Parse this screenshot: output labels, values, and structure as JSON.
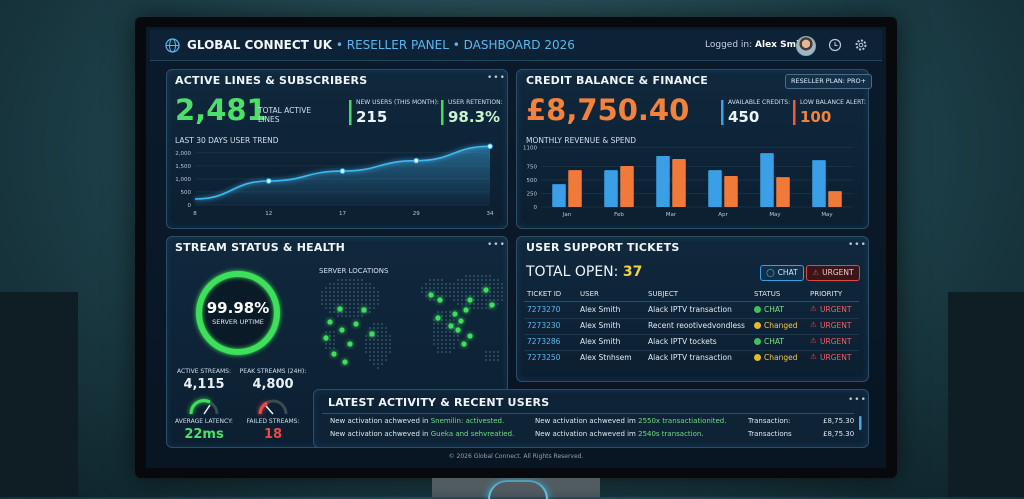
{
  "header": {
    "brand": "GLOBAL CONNECT UK",
    "section": "• RESELLER PANEL",
    "page": "• DASHBOARD 2026",
    "login_label": "Logged in:",
    "user": "Alex Smith"
  },
  "active_lines": {
    "title": "ACTIVE LINES & SUBSCRIBERS",
    "total": "2,481",
    "total_label": "TOTAL ACTIVE LINES",
    "new_users_label": "NEW USERS (THIS MONTH):",
    "new_users": "215",
    "retention_label": "USER RETENTION:",
    "retention": "98.3%",
    "chart_data": {
      "type": "line",
      "title": "LAST 30 DAYS USER TREND",
      "categories": [
        "8",
        "12",
        "17",
        "29",
        "34"
      ],
      "values": [
        230,
        920,
        1300,
        1700,
        2250
      ],
      "color": "#41b8f2",
      "ylim": [
        0,
        2300
      ],
      "yticks": [
        0,
        500,
        {
          "value": 1000,
          "label": "1,000"
        },
        {
          "value": 1500,
          "label": "1,500"
        },
        {
          "value": 2000,
          "label": "2,000"
        }
      ],
      "grid": true
    }
  },
  "finance": {
    "title": "CREDIT BALANCE & FINANCE",
    "plan": "RESELLER PLAN: PRO+",
    "balance": "£8,750.40",
    "credits_label": "AVAILABLE CREDITS:",
    "credits": "450",
    "alert_label": "LOW BALANCE ALERT:",
    "alert": "100",
    "chart_data": {
      "type": "bar",
      "title": "MONTHLY REVENUE & SPEND",
      "categories": [
        "Jan",
        "Feb",
        "Mar",
        "Apr",
        "May",
        "May"
      ],
      "series": [
        {
          "color": "#3a9fe6",
          "values": [
            425,
            685,
            945,
            685,
            1000,
            870
          ]
        },
        {
          "color": "#f07a3a",
          "values": [
            685,
            760,
            890,
            575,
            555,
            295
          ]
        }
      ],
      "ylim": [
        0,
        1150
      ],
      "yticks": [
        0,
        250,
        500,
        750,
        1100
      ],
      "grid": true
    }
  },
  "streams": {
    "title": "STREAM STATUS & HEALTH",
    "uptime": "99.98%",
    "uptime_label": "SERVER UPTIME",
    "map_label": "SERVER LOCATIONS",
    "active_label": "ACTIVE STREAMS:",
    "active": "4,115",
    "peak_label": "PEAK STREAMS (24H):",
    "peak": "4,800",
    "latency_label": "AVERAGE LATENCY:",
    "latency": "22ms",
    "failed_label": "FAILED STREAMS:",
    "failed": "18"
  },
  "tickets": {
    "title": "USER SUPPORT TICKETS",
    "open_label": "TOTAL OPEN:",
    "open": "37",
    "buttons": [
      "CHAT",
      "URGENT"
    ],
    "table": {
      "header": [
        "TICKET ID",
        "USER",
        "SUBJECT",
        "STATUS",
        "PRIORITY"
      ],
      "rows": [
        [
          "7273270",
          "Alex Smith",
          "Alack IPTV transaction",
          "CHAT",
          "URGENT"
        ],
        [
          "7273230",
          "Alex Smith",
          "Recent reootivedvondless",
          "Changed",
          "URGENT"
        ],
        [
          "7273286",
          "Alex Smith",
          "Alack IPTV tockets",
          "CHAT",
          "URGENT"
        ],
        [
          "7273250",
          "Alex Stnhsem",
          "Alack IPTV transaction",
          "Changed",
          "URGENT"
        ]
      ]
    }
  },
  "activity": {
    "title": "LATEST ACTIVITY & RECENT USERS",
    "rows": [
      {
        "text1": "New activation achweved in ",
        "highlight1": "Snemilin: activested.",
        "text2": "New activation achweved im ",
        "highlight2": "2550x transactiationited.",
        "label": "Transaction:",
        "amount": "£8,75.30"
      },
      {
        "text1": "New activation achweved in ",
        "highlight1": "Gueka and sehvreatied.",
        "text2": "New activation achweved im ",
        "highlight2": "2540s transaction.",
        "label": "Transactions",
        "amount": "£8,75.30"
      }
    ]
  },
  "footer": "© 2026 Global Connect. All Rights Reserved."
}
